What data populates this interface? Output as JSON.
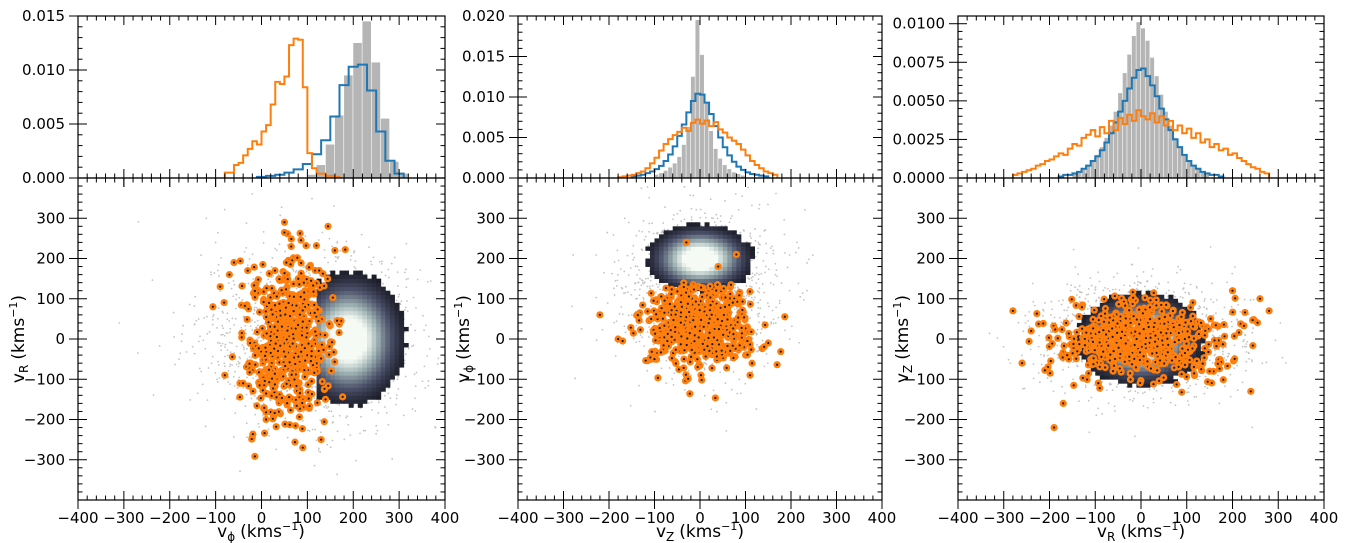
{
  "chart_data": [
    {
      "type": "histogram",
      "panel": "top-left",
      "xlim": [
        -400,
        400
      ],
      "ylim": [
        0,
        0.015
      ],
      "yticks": [
        "0.000",
        "0.005",
        "0.010",
        "0.015"
      ],
      "series": [
        {
          "role": "gray-filled",
          "color": "#b5b5b5",
          "bin_width": 20,
          "centers": [
            110,
            130,
            150,
            170,
            190,
            210,
            230,
            250,
            270,
            290,
            310
          ],
          "values": [
            0.0003,
            0.0012,
            0.0031,
            0.0058,
            0.0095,
            0.0125,
            0.0145,
            0.0107,
            0.0055,
            0.0015,
            0.0004
          ]
        },
        {
          "role": "blue-step",
          "color": "#1f77b4",
          "bin_width": 20,
          "centers": [
            0,
            20,
            40,
            60,
            80,
            100,
            120,
            140,
            160,
            180,
            200,
            220,
            240,
            260,
            280,
            300
          ],
          "values": [
            0.0001,
            0.0002,
            0.0003,
            0.0005,
            0.0008,
            0.0013,
            0.0022,
            0.0035,
            0.0057,
            0.0086,
            0.0103,
            0.0105,
            0.0081,
            0.0043,
            0.0016,
            0.0004
          ]
        },
        {
          "role": "orange-step",
          "color": "#ff7f0e",
          "bin_width": 10,
          "centers": [
            -75,
            -65,
            -55,
            -45,
            -35,
            -25,
            -15,
            -5,
            5,
            15,
            25,
            35,
            45,
            55,
            65,
            75,
            85,
            95,
            105,
            115,
            125,
            135,
            145,
            155,
            165
          ],
          "values": [
            0.0005,
            0.0005,
            0.0012,
            0.0014,
            0.0021,
            0.0027,
            0.0034,
            0.0031,
            0.0043,
            0.0049,
            0.0068,
            0.0089,
            0.0087,
            0.0094,
            0.0123,
            0.0129,
            0.0128,
            0.0084,
            0.0023,
            0.0009,
            0.0004,
            0.0004,
            0.0002,
            0.0002,
            0.0001
          ]
        }
      ]
    },
    {
      "type": "histogram",
      "panel": "top-middle",
      "xlim": [
        -400,
        400
      ],
      "ylim": [
        0,
        0.02
      ],
      "yticks": [
        "0.000",
        "0.005",
        "0.010",
        "0.015",
        "0.020"
      ],
      "series": [
        {
          "role": "gray-filled",
          "color": "#b5b5b5",
          "bin_width": 10,
          "centers": [
            -95,
            -85,
            -75,
            -65,
            -55,
            -45,
            -35,
            -25,
            -15,
            -5,
            5,
            15,
            25,
            35,
            45,
            55,
            65,
            75,
            85,
            95
          ],
          "values": [
            0.0004,
            0.0006,
            0.0009,
            0.0013,
            0.0018,
            0.0026,
            0.0041,
            0.0063,
            0.0125,
            0.0195,
            0.0152,
            0.0092,
            0.0058,
            0.0036,
            0.0024,
            0.0016,
            0.0011,
            0.0007,
            0.0005,
            0.0003
          ]
        },
        {
          "role": "blue-step",
          "color": "#1f77b4",
          "bin_width": 10,
          "centers": [
            -145,
            -135,
            -125,
            -115,
            -105,
            -95,
            -85,
            -75,
            -65,
            -55,
            -45,
            -35,
            -25,
            -15,
            -5,
            5,
            15,
            25,
            35,
            45,
            55,
            65,
            75,
            85,
            95,
            105,
            115,
            125,
            135,
            145
          ],
          "values": [
            0.0002,
            0.0003,
            0.0004,
            0.0006,
            0.0008,
            0.0011,
            0.0015,
            0.0021,
            0.0029,
            0.0039,
            0.0052,
            0.0066,
            0.0081,
            0.0095,
            0.0104,
            0.0103,
            0.0093,
            0.0079,
            0.0064,
            0.005,
            0.0038,
            0.0028,
            0.002,
            0.0014,
            0.001,
            0.0007,
            0.0005,
            0.0004,
            0.0003,
            0.0002
          ]
        },
        {
          "role": "orange-step",
          "color": "#ff7f0e",
          "bin_width": 10,
          "centers": [
            -175,
            -165,
            -155,
            -145,
            -135,
            -125,
            -115,
            -105,
            -95,
            -85,
            -75,
            -65,
            -55,
            -45,
            -35,
            -25,
            -15,
            -5,
            5,
            15,
            25,
            35,
            45,
            55,
            65,
            75,
            85,
            95,
            105,
            115,
            125,
            135,
            145,
            155,
            165
          ],
          "values": [
            0.0001,
            0.0002,
            0.0003,
            0.0004,
            0.0006,
            0.0008,
            0.0012,
            0.0018,
            0.0025,
            0.0034,
            0.0042,
            0.0048,
            0.0053,
            0.0057,
            0.0062,
            0.0058,
            0.0068,
            0.0072,
            0.0067,
            0.0071,
            0.0064,
            0.0069,
            0.006,
            0.0056,
            0.005,
            0.0046,
            0.0042,
            0.0035,
            0.0028,
            0.0021,
            0.0016,
            0.0012,
            0.0008,
            0.0006,
            0.0004
          ]
        }
      ]
    },
    {
      "type": "histogram",
      "panel": "top-right",
      "xlim": [
        -400,
        400
      ],
      "ylim": [
        0,
        0.0105
      ],
      "yticks": [
        "0.0000",
        "0.0025",
        "0.0050",
        "0.0075",
        "0.0100"
      ],
      "series": [
        {
          "role": "gray-filled",
          "color": "#b5b5b5",
          "bin_width": 10,
          "centers": [
            -145,
            -135,
            -125,
            -115,
            -105,
            -95,
            -85,
            -75,
            -65,
            -55,
            -45,
            -35,
            -25,
            -15,
            -5,
            5,
            15,
            25,
            35,
            45,
            55,
            65,
            75,
            85,
            95,
            105,
            115,
            125,
            135,
            145
          ],
          "values": [
            0.0003,
            0.0004,
            0.0006,
            0.0008,
            0.0011,
            0.0015,
            0.002,
            0.0026,
            0.0034,
            0.0043,
            0.0055,
            0.0068,
            0.008,
            0.0092,
            0.0101,
            0.0097,
            0.0089,
            0.0078,
            0.0066,
            0.0054,
            0.0043,
            0.0034,
            0.0026,
            0.002,
            0.0015,
            0.0011,
            0.0008,
            0.0006,
            0.0004,
            0.0003
          ]
        },
        {
          "role": "blue-step",
          "color": "#1f77b4",
          "bin_width": 10,
          "centers": [
            -175,
            -165,
            -155,
            -145,
            -135,
            -125,
            -115,
            -105,
            -95,
            -85,
            -75,
            -65,
            -55,
            -45,
            -35,
            -25,
            -15,
            -5,
            5,
            15,
            25,
            35,
            45,
            55,
            65,
            75,
            85,
            95,
            105,
            115,
            125,
            135,
            145,
            155,
            165,
            175
          ],
          "values": [
            0.0001,
            0.0002,
            0.0002,
            0.0003,
            0.0004,
            0.0006,
            0.0008,
            0.0011,
            0.0014,
            0.0018,
            0.0023,
            0.0029,
            0.0036,
            0.0043,
            0.005,
            0.0058,
            0.0065,
            0.007,
            0.0071,
            0.0066,
            0.006,
            0.0053,
            0.0045,
            0.0038,
            0.0031,
            0.0025,
            0.002,
            0.0015,
            0.0011,
            0.0008,
            0.0006,
            0.0004,
            0.0003,
            0.0002,
            0.0002,
            0.0001
          ]
        },
        {
          "role": "orange-step",
          "color": "#ff7f0e",
          "bin_width": 10,
          "centers": [
            -275,
            -265,
            -255,
            -245,
            -235,
            -225,
            -215,
            -205,
            -195,
            -185,
            -175,
            -165,
            -155,
            -145,
            -135,
            -125,
            -115,
            -105,
            -95,
            -85,
            -75,
            -65,
            -55,
            -45,
            -35,
            -25,
            -15,
            -5,
            5,
            15,
            25,
            35,
            45,
            55,
            65,
            75,
            85,
            95,
            105,
            115,
            125,
            135,
            145,
            155,
            165,
            175,
            185,
            195,
            205,
            215,
            225,
            235,
            245,
            255,
            265,
            275
          ],
          "values": [
            0.0002,
            0.0003,
            0.0004,
            0.0005,
            0.0006,
            0.0008,
            0.0009,
            0.0011,
            0.0012,
            0.0014,
            0.0016,
            0.0015,
            0.0019,
            0.0022,
            0.0021,
            0.0026,
            0.0028,
            0.0031,
            0.0027,
            0.0033,
            0.0029,
            0.0037,
            0.0031,
            0.0039,
            0.0035,
            0.0041,
            0.0037,
            0.0044,
            0.004,
            0.0038,
            0.0042,
            0.0036,
            0.004,
            0.0034,
            0.0037,
            0.0031,
            0.0034,
            0.0029,
            0.0032,
            0.0026,
            0.0029,
            0.0023,
            0.0025,
            0.002,
            0.0022,
            0.0018,
            0.0019,
            0.0015,
            0.0016,
            0.0013,
            0.0011,
            0.0009,
            0.0007,
            0.0006,
            0.0004,
            0.0003
          ]
        }
      ]
    },
    {
      "type": "scatter",
      "panel": "bottom-left",
      "xlabel": "v",
      "xlabel_sub": "ϕ",
      "ylabel": "v",
      "ylabel_sub": "R",
      "unit": "(kms",
      "unit_exp": "−1",
      "unit_close": ")",
      "xlim": [
        -400,
        400
      ],
      "ylim": [
        -400,
        400
      ],
      "xticks": [
        "−400",
        "−300",
        "−200",
        "−100",
        "0",
        "100",
        "200",
        "300",
        "400"
      ],
      "yticks": [
        "−300",
        "−200",
        "−100",
        "0",
        "100",
        "200",
        "300"
      ],
      "density": {
        "cx": 190,
        "cy": 0,
        "sx": 58,
        "sy": 78,
        "xr": [
          120,
          330
        ],
        "yr": [
          -190,
          200
        ]
      },
      "gray_cloud": {
        "cx": 110,
        "cy": 0,
        "sx": 120,
        "sy": 110,
        "n": 1400
      },
      "orange_points": {
        "cx": 55,
        "cy": 0,
        "sx": 45,
        "sy": 95,
        "n": 620,
        "xmax": 185,
        "extra": [
          [
            -90,
            130
          ],
          [
            -70,
            160
          ],
          [
            -60,
            190
          ],
          [
            50,
            290
          ],
          [
            145,
            280
          ],
          [
            -40,
            -110
          ],
          [
            10,
            -200
          ],
          [
            90,
            -270
          ],
          [
            130,
            -250
          ],
          [
            160,
            220
          ],
          [
            -80,
            -90
          ],
          [
            -30,
            170
          ]
        ]
      }
    },
    {
      "type": "scatter",
      "panel": "bottom-middle",
      "xlabel": "v",
      "xlabel_sub": "Z",
      "ylabel": "v",
      "ylabel_sub": "ϕ",
      "unit": "(kms",
      "unit_exp": "−1",
      "unit_close": ")",
      "xlim": [
        -400,
        400
      ],
      "ylim": [
        -400,
        400
      ],
      "xticks": [
        "−400",
        "−300",
        "−200",
        "−100",
        "0",
        "100",
        "200",
        "300",
        "400"
      ],
      "yticks": [
        "−300",
        "−200",
        "−100",
        "0",
        "100",
        "200",
        "300"
      ],
      "density": {
        "cx": 0,
        "cy": 200,
        "sx": 55,
        "sy": 40,
        "xr": [
          -190,
          160
        ],
        "yr": [
          110,
          320
        ]
      },
      "gray_cloud": {
        "cx": 0,
        "cy": 120,
        "sx": 85,
        "sy": 95,
        "n": 1400
      },
      "orange_points": {
        "cx": 0,
        "cy": 30,
        "sx": 55,
        "sy": 50,
        "n": 650,
        "ymax": 140,
        "extra": [
          [
            -220,
            60
          ],
          [
            -180,
            0
          ],
          [
            -170,
            -5
          ],
          [
            110,
            -90
          ],
          [
            150,
            -10
          ],
          [
            -30,
            240
          ],
          [
            40,
            180
          ],
          [
            -100,
            -50
          ],
          [
            80,
            210
          ]
        ]
      }
    },
    {
      "type": "scatter",
      "panel": "bottom-right",
      "xlabel": "v",
      "xlabel_sub": "R",
      "ylabel": "v",
      "ylabel_sub": "Z",
      "unit": "(kms",
      "unit_exp": "−1",
      "unit_close": ")",
      "xlim": [
        -400,
        400
      ],
      "ylim": [
        -400,
        400
      ],
      "xticks": [
        "−400",
        "−300",
        "−200",
        "−100",
        "0",
        "100",
        "200",
        "300",
        "400"
      ],
      "yticks": [
        "−300",
        "−200",
        "−100",
        "0",
        "100",
        "200",
        "300"
      ],
      "density": {
        "cx": 0,
        "cy": 0,
        "sx": 65,
        "sy": 55,
        "xr": [
          -190,
          180
        ],
        "yr": [
          -120,
          140
        ]
      },
      "gray_cloud": {
        "cx": 0,
        "cy": 0,
        "sx": 110,
        "sy": 70,
        "n": 1400
      },
      "orange_points": {
        "cx": 0,
        "cy": 0,
        "sx": 90,
        "sy": 45,
        "n": 620,
        "extra": [
          [
            -280,
            70
          ],
          [
            -260,
            -60
          ],
          [
            -190,
            -220
          ],
          [
            -170,
            -160
          ],
          [
            240,
            -130
          ],
          [
            280,
            70
          ],
          [
            260,
            100
          ],
          [
            200,
            120
          ],
          [
            -240,
            20
          ],
          [
            150,
            -80
          ]
        ]
      }
    }
  ]
}
